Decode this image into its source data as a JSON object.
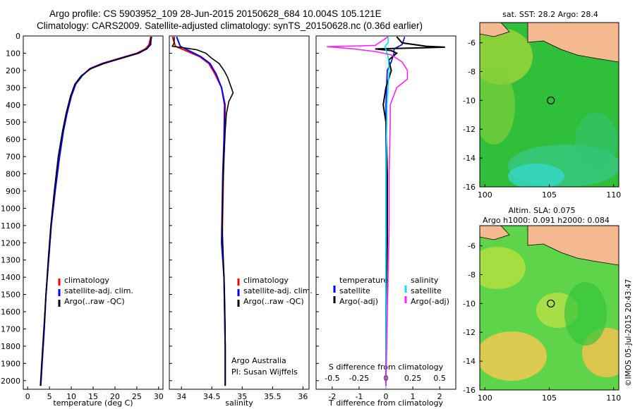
{
  "title": {
    "line1": "Argo profile: CS 5903952_109 28-Jun-2015 20150628_684 10.004S 105.121E",
    "line2": "Climatology: CARS2009. Satellite-adjusted climatology: synTS_20150628.nc (0.36d earlier)"
  },
  "watermark": "©IMOS 05-Jul-2015 20:43:47",
  "colors": {
    "climatology": "#ff0000",
    "satellite": "#0000ff",
    "argo": "#000000",
    "sal_satellite": "#00e5ff",
    "sal_argo": "#ff22ff",
    "land": "#f5b990",
    "sst_bg": "#2fbf3a",
    "sla_bg": "#5ed44a"
  },
  "chart_data": [
    {
      "type": "line",
      "panel": "temperature",
      "xlabel": "temperature (deg C)",
      "xlim": [
        -1,
        31
      ],
      "ylim": [
        0,
        2050
      ],
      "xticks": [
        0,
        5,
        10,
        15,
        20,
        25,
        30
      ],
      "yticks": [
        0,
        100,
        200,
        300,
        400,
        500,
        600,
        700,
        800,
        900,
        1000,
        1100,
        1200,
        1300,
        1400,
        1500,
        1600,
        1700,
        1800,
        1900,
        2000
      ],
      "legend": [
        "climatology",
        "satellite-adj. clim.",
        "Argo(..raw -QC)"
      ],
      "series": [
        {
          "name": "climatology",
          "depth": [
            5,
            50,
            75,
            100,
            130,
            160,
            190,
            230,
            280,
            350,
            450,
            550,
            700,
            900,
            1100,
            1300,
            1500,
            1700,
            1900,
            2030
          ],
          "values": [
            28.2,
            27.8,
            27.0,
            25.0,
            21.0,
            17.0,
            14.2,
            12.5,
            11.0,
            10.0,
            9.0,
            8.2,
            7.3,
            6.3,
            5.4,
            4.8,
            4.2,
            3.8,
            3.3,
            3.0
          ]
        },
        {
          "name": "satellite-adj. clim.",
          "depth": [
            5,
            50,
            75,
            100,
            130,
            160,
            190,
            230,
            280,
            350,
            450,
            550,
            700,
            900,
            1100,
            1300,
            1500,
            1700,
            1900,
            2030
          ],
          "values": [
            28.4,
            28.0,
            27.3,
            25.3,
            21.3,
            17.2,
            14.3,
            12.5,
            11.0,
            10.0,
            9.0,
            8.2,
            7.3,
            6.3,
            5.4,
            4.8,
            4.2,
            3.8,
            3.3,
            3.0
          ]
        },
        {
          "name": "Argo(..raw -QC)",
          "depth": [
            5,
            50,
            70,
            100,
            130,
            160,
            190,
            230,
            280,
            350,
            450,
            550,
            700,
            900,
            1100,
            1300,
            1500,
            1700,
            1900,
            2030
          ],
          "values": [
            28.3,
            28.2,
            27.5,
            25.5,
            21.5,
            17.5,
            14.5,
            12.3,
            10.8,
            9.8,
            8.8,
            8.0,
            7.0,
            6.1,
            5.3,
            4.7,
            4.2,
            3.7,
            3.2,
            2.9
          ]
        }
      ]
    },
    {
      "type": "line",
      "panel": "salinity",
      "xlabel": "salinity",
      "xlim": [
        33.8,
        36.1
      ],
      "ylim": [
        0,
        2050
      ],
      "xticks": [
        34,
        34.5,
        35,
        35.5,
        36
      ],
      "legend": [
        "climatology",
        "satellite-adj. clim.",
        "Argo(..raw -QC)"
      ],
      "annotation": [
        "Argo Australia",
        "PI: Susan Wijffels"
      ],
      "series": [
        {
          "name": "climatology",
          "depth": [
            5,
            60,
            90,
            120,
            160,
            220,
            300,
            400,
            600,
            800,
            1000,
            1200,
            1400,
            1600,
            1800,
            2030
          ],
          "values": [
            33.85,
            33.9,
            34.1,
            34.3,
            34.45,
            34.55,
            34.66,
            34.72,
            34.71,
            34.69,
            34.68,
            34.67,
            34.7,
            34.71,
            34.72,
            34.72
          ]
        },
        {
          "name": "satellite-adj. clim.",
          "depth": [
            5,
            60,
            90,
            120,
            160,
            220,
            300,
            400,
            600,
            800,
            1000,
            1200,
            1400,
            1600,
            1800,
            2030
          ],
          "values": [
            33.92,
            33.98,
            34.15,
            34.32,
            34.47,
            34.57,
            34.66,
            34.71,
            34.7,
            34.68,
            34.67,
            34.66,
            34.7,
            34.71,
            34.72,
            34.72
          ]
        },
        {
          "name": "Argo(..raw -QC)",
          "depth": [
            5,
            40,
            60,
            72,
            80,
            100,
            130,
            160,
            200,
            240,
            280,
            330,
            380,
            450,
            550,
            700,
            900,
            1100,
            1300,
            1500,
            1700,
            1900,
            2030
          ],
          "values": [
            33.88,
            33.88,
            33.85,
            34.1,
            34.25,
            34.4,
            34.5,
            34.62,
            34.7,
            34.76,
            34.8,
            34.85,
            34.78,
            34.74,
            34.72,
            34.7,
            34.68,
            34.67,
            34.69,
            34.71,
            34.72,
            34.72,
            34.72
          ]
        }
      ]
    },
    {
      "type": "line",
      "panel": "difference",
      "xlabel": "T difference from climatology",
      "xlabel_top": "S difference from climatology",
      "xlim": [
        -2.6,
        2.6
      ],
      "ylim": [
        0,
        2050
      ],
      "xticks": [
        -2,
        -1,
        0,
        1,
        2
      ],
      "xticks_top": [
        "-0.5",
        "-0.25",
        "0",
        "0.25",
        "0.5"
      ],
      "legend": {
        "temperature_header": "temperature",
        "salinity_header": "salinity",
        "temperature": [
          "satellite",
          "Argo(-adj)"
        ],
        "salinity": [
          "satellite",
          "Argo(-adj)"
        ]
      },
      "series": [
        {
          "name": "T satellite",
          "depth": [
            5,
            50,
            75,
            100,
            150,
            200,
            400,
            800,
            2030
          ],
          "values": [
            0.7,
            0.6,
            0.3,
            0.3,
            0.2,
            0.05,
            0.0,
            0.0,
            0.0
          ]
        },
        {
          "name": "T Argo(-adj)",
          "depth": [
            5,
            40,
            60,
            65,
            70,
            75,
            85,
            100,
            140,
            200,
            300,
            400,
            500,
            800,
            1200,
            1600,
            2030
          ],
          "values": [
            0.4,
            0.6,
            1.5,
            2.2,
            1.0,
            -0.4,
            0.2,
            0.4,
            0.1,
            0.2,
            0.0,
            -0.1,
            0.0,
            0.05,
            0.05,
            0.0,
            0.0
          ]
        },
        {
          "name": "S satellite",
          "depth": [
            5,
            40,
            60,
            80,
            120,
            200,
            400,
            800,
            2030
          ],
          "values": [
            0.02,
            0.02,
            -0.01,
            0.0,
            0.02,
            0.03,
            0.01,
            0.0,
            0.0
          ]
        },
        {
          "name": "S Argo(-adj)",
          "depth": [
            5,
            55,
            62,
            75,
            90,
            110,
            150,
            200,
            250,
            300,
            400,
            500,
            800,
            1100,
            2030
          ],
          "values": [
            0.02,
            -0.1,
            -0.55,
            -0.3,
            -0.1,
            0.05,
            0.15,
            0.2,
            0.2,
            0.1,
            0.04,
            0.04,
            0.03,
            0.03,
            0.0
          ]
        }
      ]
    },
    {
      "type": "heatmap",
      "panel": "sst_map",
      "title": "sat. SST: 28.2 Argo: 28.4",
      "xticks": [
        100,
        105,
        110
      ],
      "yticks": [
        -6,
        -8,
        -10,
        -12,
        -14,
        -16
      ],
      "xlim": [
        99.6,
        110.4
      ],
      "ylim": [
        -16,
        -4.6
      ],
      "argo_position": [
        105.121,
        -10.004
      ]
    },
    {
      "type": "heatmap",
      "panel": "sla_map",
      "title": [
        "Altim. SLA: 0.075",
        "Argo h1000: 0.091 h2000: 0.084"
      ],
      "xticks": [
        100,
        105,
        110
      ],
      "yticks": [
        -6,
        -8,
        -10,
        -12,
        -14,
        -16
      ],
      "xlim": [
        99.6,
        110.4
      ],
      "ylim": [
        -16,
        -4.6
      ],
      "argo_position": [
        105.121,
        -10.004
      ]
    }
  ]
}
